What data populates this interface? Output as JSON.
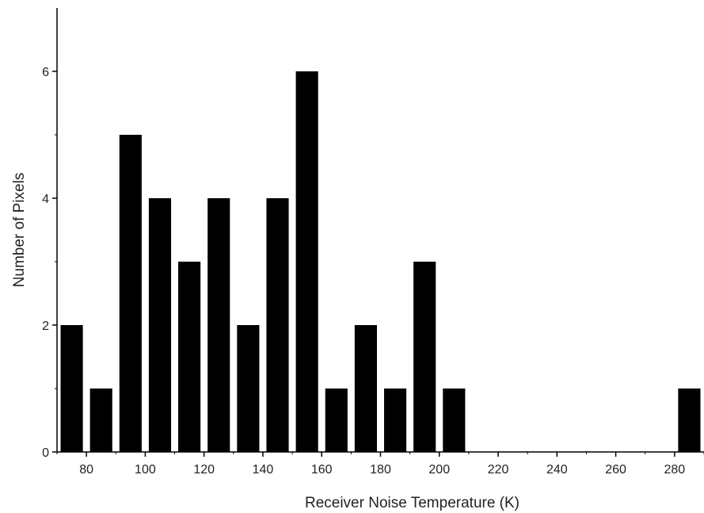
{
  "chart_data": {
    "type": "bar",
    "title": "",
    "xlabel": "Receiver Noise Temperature (K)",
    "ylabel": "Number of Pixels",
    "xlim": [
      70,
      290
    ],
    "ylim": [
      0,
      7
    ],
    "bin_width": 10,
    "x_ticks": [
      80,
      100,
      120,
      140,
      160,
      180,
      200,
      220,
      240,
      260,
      280
    ],
    "y_ticks": [
      0,
      2,
      4,
      6
    ],
    "x_tick_labels": [
      "80",
      "100",
      "120",
      "140",
      "160",
      "180",
      "200",
      "220",
      "240",
      "260",
      "280"
    ],
    "y_tick_labels": [
      "0",
      "2",
      "4",
      "6"
    ],
    "x": [
      75,
      85,
      95,
      105,
      115,
      125,
      135,
      145,
      155,
      165,
      175,
      185,
      195,
      205,
      285
    ],
    "values": [
      2,
      1,
      5,
      4,
      3,
      4,
      2,
      4,
      6,
      1,
      2,
      1,
      3,
      1,
      1
    ],
    "bar_color": "#000000",
    "grid": false,
    "legend": "none"
  }
}
